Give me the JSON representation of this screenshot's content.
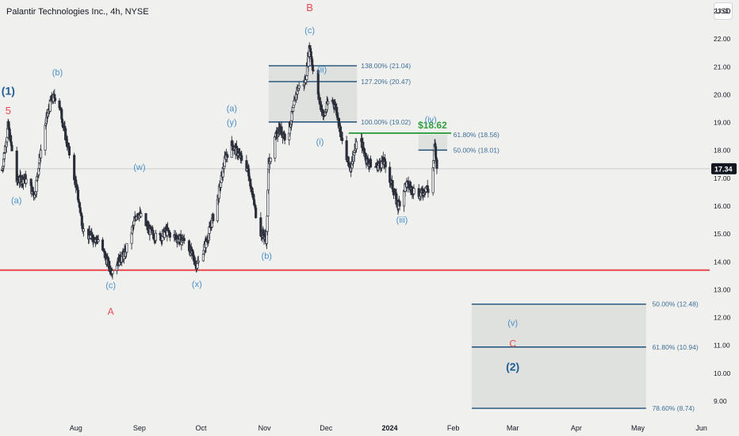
{
  "header": {
    "title": "Palantir Technologies Inc., 4h, NYSE",
    "currency": "USD"
  },
  "colors": {
    "up": "#2a2e39",
    "down": "#2a2e39",
    "wave_blue": "#4a90c8",
    "wave_dark": "#1f5a96",
    "wave_red": "#e8464f",
    "fib_line": "#1f4e79",
    "fib_text": "#3d6f98",
    "fib_fill": "#dcdfdc",
    "support": "#e8464f",
    "target": "#2e9e3e"
  },
  "chart_data": {
    "type": "candlestick",
    "title": "Palantir Technologies Inc., 4h, NYSE",
    "xlabel": "",
    "ylabel": "",
    "ylim": [
      8.4,
      23.4
    ],
    "y_ticks": [
      "23.00",
      "22.00",
      "21.00",
      "20.00",
      "19.00",
      "18.00",
      "17.00",
      "16.00",
      "15.00",
      "14.00",
      "13.00",
      "12.00",
      "11.00",
      "10.00",
      "9.00"
    ],
    "y_tick_values": [
      23,
      22,
      21,
      20,
      19,
      18,
      17,
      16,
      15,
      14,
      13,
      12,
      11,
      10,
      9
    ],
    "time_range": [
      "2023-06-25",
      "2024-06-05"
    ],
    "x_ticks": [
      {
        "label": "Aug",
        "date": "2023-08-01",
        "bold": false
      },
      {
        "label": "Sep",
        "date": "2023-09-01",
        "bold": false
      },
      {
        "label": "Oct",
        "date": "2023-10-01",
        "bold": false
      },
      {
        "label": "Nov",
        "date": "2023-11-01",
        "bold": false
      },
      {
        "label": "Dec",
        "date": "2023-12-01",
        "bold": false
      },
      {
        "label": "2024",
        "date": "2024-01-01",
        "bold": true
      },
      {
        "label": "Feb",
        "date": "2024-02-01",
        "bold": false
      },
      {
        "label": "Mar",
        "date": "2024-03-01",
        "bold": false
      },
      {
        "label": "Apr",
        "date": "2024-04-01",
        "bold": false
      },
      {
        "label": "May",
        "date": "2024-05-01",
        "bold": false
      },
      {
        "label": "Jun",
        "date": "2024-06-01",
        "bold": false
      }
    ],
    "last_price": 17.34,
    "last_price_label": "17.34",
    "anchors": [
      [
        "2023-06-26",
        17.3
      ],
      [
        "2023-06-29",
        18.9
      ],
      [
        "2023-07-03",
        16.9
      ],
      [
        "2023-07-07",
        17.0
      ],
      [
        "2023-07-12",
        16.4
      ],
      [
        "2023-07-16",
        18.6
      ],
      [
        "2023-07-20",
        19.8
      ],
      [
        "2023-07-23",
        20.0
      ],
      [
        "2023-07-27",
        18.5
      ],
      [
        "2023-08-01",
        16.8
      ],
      [
        "2023-08-05",
        15.0
      ],
      [
        "2023-08-12",
        14.8
      ],
      [
        "2023-08-18",
        13.7
      ],
      [
        "2023-08-25",
        14.3
      ],
      [
        "2023-08-31",
        15.8
      ],
      [
        "2023-09-05",
        15.2
      ],
      [
        "2023-09-10",
        14.8
      ],
      [
        "2023-09-14",
        15.1
      ],
      [
        "2023-09-18",
        14.9
      ],
      [
        "2023-09-24",
        14.7
      ],
      [
        "2023-09-29",
        13.85
      ],
      [
        "2023-10-04",
        14.8
      ],
      [
        "2023-10-09",
        16.2
      ],
      [
        "2023-10-13",
        17.8
      ],
      [
        "2023-10-16",
        18.2
      ],
      [
        "2023-10-19",
        17.9
      ],
      [
        "2023-10-24",
        17.3
      ],
      [
        "2023-10-29",
        15.2
      ],
      [
        "2023-11-02",
        14.8
      ],
      [
        "2023-11-03",
        17.6
      ],
      [
        "2023-11-08",
        18.8
      ],
      [
        "2023-11-12",
        18.4
      ],
      [
        "2023-11-17",
        20.2
      ],
      [
        "2023-11-21",
        20.5
      ],
      [
        "2023-11-23",
        21.8
      ],
      [
        "2023-11-26",
        20.2
      ],
      [
        "2023-11-30",
        19.2
      ],
      [
        "2023-12-03",
        20.0
      ],
      [
        "2023-12-06",
        19.5
      ],
      [
        "2023-12-10",
        17.8
      ],
      [
        "2023-12-13",
        17.4
      ],
      [
        "2023-12-17",
        18.6
      ],
      [
        "2023-12-21",
        17.6
      ],
      [
        "2023-12-25",
        17.4
      ],
      [
        "2023-12-29",
        17.6
      ],
      [
        "2024-01-02",
        16.8
      ],
      [
        "2024-01-05",
        16.0
      ],
      [
        "2024-01-09",
        16.8
      ],
      [
        "2024-01-12",
        16.6
      ],
      [
        "2024-01-16",
        16.4
      ],
      [
        "2024-01-19",
        16.7
      ],
      [
        "2024-01-21",
        16.3
      ],
      [
        "2024-01-23",
        18.2
      ],
      [
        "2024-01-24",
        17.34
      ]
    ],
    "support_line": {
      "y": 13.7,
      "from": "2023-06-25",
      "to": "2024-06-05"
    },
    "target_line": {
      "y": 18.62,
      "from": "2023-12-12",
      "to": "2024-01-31",
      "label": "$18.62"
    },
    "fib_boxes": [
      {
        "y1": 19.02,
        "y2": 21.04,
        "from": "2023-11-03",
        "to": "2023-12-16"
      },
      {
        "y1": 18.01,
        "y2": 18.56,
        "from": "2024-01-15",
        "to": "2024-01-29"
      },
      {
        "y1": 8.74,
        "y2": 12.48,
        "from": "2024-02-10",
        "to": "2024-05-05"
      }
    ],
    "fib_levels": [
      {
        "y": 21.04,
        "label": "138.00% (21.04)",
        "from": "2023-11-03",
        "to": "2023-12-16",
        "label_at": "2023-12-18"
      },
      {
        "y": 20.47,
        "label": "127.20% (20.47)",
        "from": "2023-11-03",
        "to": "2023-12-16",
        "label_at": "2023-12-18"
      },
      {
        "y": 19.02,
        "label": "100.00% (19.02)",
        "from": "2023-11-03",
        "to": "2023-12-16",
        "label_at": "2023-12-18"
      },
      {
        "y": 18.01,
        "label": "50.00% (18.01)",
        "from": "2024-01-15",
        "to": "2024-01-29",
        "label_at": "2024-02-01"
      },
      {
        "y": 12.48,
        "label": "50.00% (12.48)",
        "from": "2024-02-10",
        "to": "2024-05-05",
        "label_at": "2024-05-08"
      },
      {
        "y": 10.94,
        "label": "61.80% (10.94)",
        "from": "2024-02-10",
        "to": "2024-05-05",
        "label_at": "2024-05-08"
      },
      {
        "y": 8.74,
        "label": "78.60% (8.74)",
        "from": "2024-02-10",
        "to": "2024-05-05",
        "label_at": "2024-05-08"
      }
    ],
    "extra_fib_labels": [
      {
        "y": 18.56,
        "label": "61.80% (18.56)",
        "at": "2024-02-01"
      }
    ],
    "wave_labels": [
      {
        "text": "(1)",
        "date": "2023-06-29",
        "y": 20.0,
        "color": "wave_dark",
        "size": 14
      },
      {
        "text": "5",
        "date": "2023-06-29",
        "y": 19.3,
        "color": "wave_red",
        "size": 13
      },
      {
        "text": "(a)",
        "date": "2023-07-03",
        "y": 16.1,
        "color": "wave_blue",
        "size": 11
      },
      {
        "text": "(b)",
        "date": "2023-07-23",
        "y": 20.7,
        "color": "wave_blue",
        "size": 11
      },
      {
        "text": "(w)",
        "date": "2023-09-01",
        "y": 17.3,
        "color": "wave_blue",
        "size": 11
      },
      {
        "text": "(c)",
        "date": "2023-08-18",
        "y": 13.05,
        "color": "wave_blue",
        "size": 11
      },
      {
        "text": "A",
        "date": "2023-08-18",
        "y": 12.1,
        "color": "wave_red",
        "size": 12
      },
      {
        "text": "(x)",
        "date": "2023-09-29",
        "y": 13.1,
        "color": "wave_blue",
        "size": 11
      },
      {
        "text": "(a)",
        "date": "2023-10-16",
        "y": 19.4,
        "color": "wave_blue",
        "size": 11
      },
      {
        "text": "(y)",
        "date": "2023-10-16",
        "y": 18.9,
        "color": "wave_blue",
        "size": 11
      },
      {
        "text": "(b)",
        "date": "2023-11-02",
        "y": 14.1,
        "color": "wave_blue",
        "size": 11
      },
      {
        "text": "B",
        "date": "2023-11-23",
        "y": 23.0,
        "color": "wave_red",
        "size": 13
      },
      {
        "text": "(c)",
        "date": "2023-11-23",
        "y": 22.2,
        "color": "wave_blue",
        "size": 11
      },
      {
        "text": "(ii)",
        "date": "2023-11-29",
        "y": 20.8,
        "color": "wave_blue",
        "size": 11
      },
      {
        "text": "(i)",
        "date": "2023-11-28",
        "y": 18.2,
        "color": "wave_blue",
        "size": 11
      },
      {
        "text": "(iv)",
        "date": "2024-01-21",
        "y": 19.0,
        "color": "wave_blue",
        "size": 11
      },
      {
        "text": "(iii)",
        "date": "2024-01-07",
        "y": 15.4,
        "color": "wave_blue",
        "size": 11
      },
      {
        "text": "(v)",
        "date": "2024-03-01",
        "y": 11.7,
        "color": "wave_blue",
        "size": 11
      },
      {
        "text": "C",
        "date": "2024-03-01",
        "y": 10.95,
        "color": "wave_red",
        "size": 12
      },
      {
        "text": "(2)",
        "date": "2024-03-01",
        "y": 10.1,
        "color": "wave_dark",
        "size": 14
      }
    ]
  }
}
